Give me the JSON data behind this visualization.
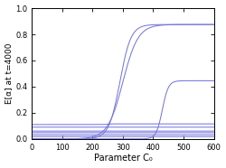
{
  "title": "",
  "xlabel": "Parameter C₀",
  "ylabel": "E[α] at t=4000",
  "xlim": [
    0,
    600
  ],
  "ylim": [
    0,
    1.0
  ],
  "xticks": [
    0,
    100,
    200,
    300,
    400,
    500,
    600
  ],
  "yticks": [
    0,
    0.2,
    0.4,
    0.6,
    0.8,
    1.0
  ],
  "line_color": "#7777dd",
  "background_color": "#ffffff",
  "curves": [
    {
      "type": "sigmoid",
      "x_mid": 290,
      "y_plateau": 0.875,
      "steepness": 0.055
    },
    {
      "type": "sigmoid",
      "x_mid": 300,
      "y_plateau": 0.875,
      "steepness": 0.04
    },
    {
      "type": "sigmoid",
      "x_mid": 430,
      "y_plateau": 0.445,
      "steepness": 0.1
    },
    {
      "type": "sigmoid_flat",
      "x_break": 250,
      "y_low": 0.11,
      "y_high": 0.115,
      "steepness": 0.15
    },
    {
      "type": "flat",
      "y0": 0.09
    },
    {
      "type": "flat",
      "y0": 0.06
    },
    {
      "type": "flat",
      "y0": 0.048
    },
    {
      "type": "flat",
      "y0": 0.032
    },
    {
      "type": "flat",
      "y0": 0.018
    }
  ]
}
